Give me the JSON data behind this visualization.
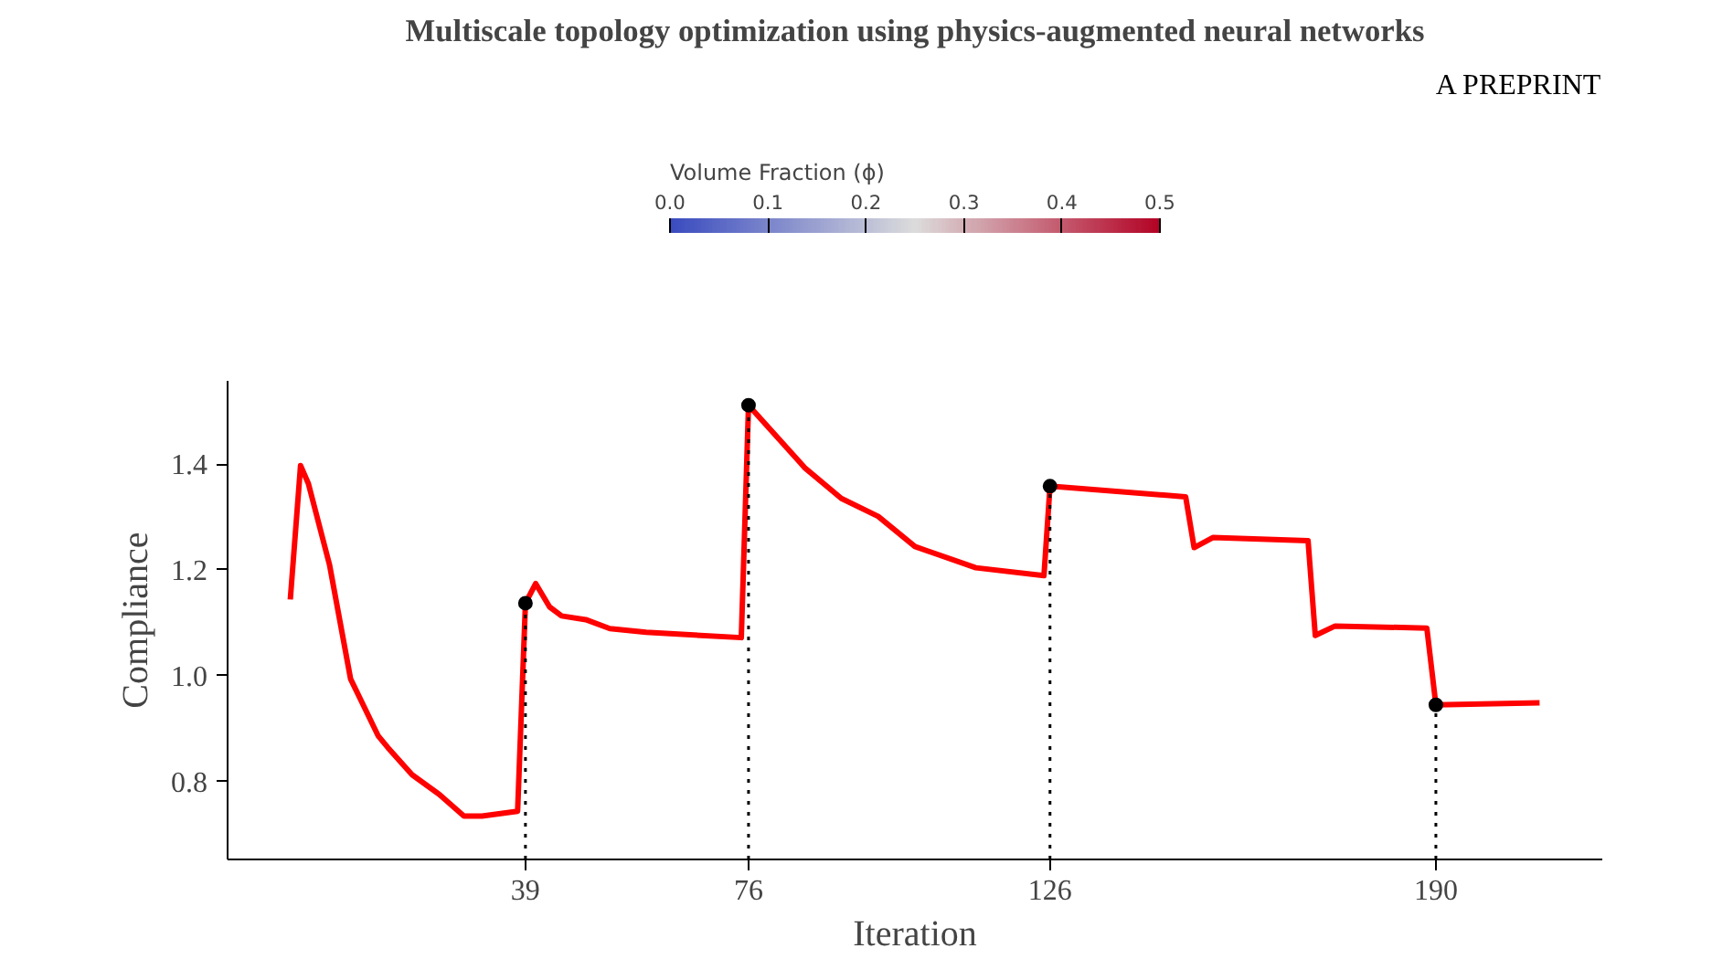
{
  "chart_data": {
    "type": "line",
    "title": "Multiscale topology optimization using physics-augmented neural networks",
    "annotations": [
      "A PREPRINT"
    ],
    "xlabel": "Iteration",
    "ylabel": "Compliance",
    "clabel": "Volume Fraction (ϕ)",
    "clim": [
      0,
      0.5
    ],
    "cticks": [
      {
        "value": 0,
        "label": "0.0"
      },
      0.1,
      0.2,
      0.3,
      0.4,
      0.5
    ],
    "xlim": [
      -10.4,
      217.6
    ],
    "ylim": [
      0.653,
      1.557
    ],
    "xticks": [
      39,
      76,
      126,
      190
    ],
    "yticks": [
      0.8,
      {
        "value": 1.0,
        "label": "1.0"
      },
      1.2,
      1.4
    ],
    "series": [
      {
        "color": "#ff0000",
        "line_style": "solid",
        "marker": "none",
        "x": [
          0,
          1.7,
          3,
          6.5,
          10,
          14.6,
          16.2,
          20.2,
          24.7,
          28.8,
          31.8,
          37.7,
          39,
          40.7,
          43,
          45,
          49,
          53,
          59,
          74.8,
          76,
          85.4,
          91.4,
          97.5,
          103.6,
          113.7,
          125,
          126,
          148.5,
          149.9,
          153,
          168.8,
          170,
          173.3,
          188.5,
          190,
          207.2
        ],
        "values": [
          1.144,
          1.397,
          1.363,
          1.21,
          0.994,
          0.886,
          0.864,
          0.813,
          0.776,
          0.735,
          0.735,
          0.744,
          1.137,
          1.174,
          1.13,
          1.113,
          1.106,
          1.089,
          1.082,
          1.072,
          1.511,
          1.392,
          1.335,
          1.301,
          1.244,
          1.204,
          1.189,
          1.358,
          1.338,
          1.242,
          1.261,
          1.255,
          1.076,
          1.094,
          1.09,
          0.945,
          0.949
        ]
      },
      {
        "type": "lollipop",
        "color": "#000000",
        "line_style": "dotted",
        "marker": "circle",
        "x": [
          39,
          76,
          126,
          190
        ],
        "values": [
          1.137,
          1.511,
          1.358,
          0.945
        ]
      }
    ]
  }
}
